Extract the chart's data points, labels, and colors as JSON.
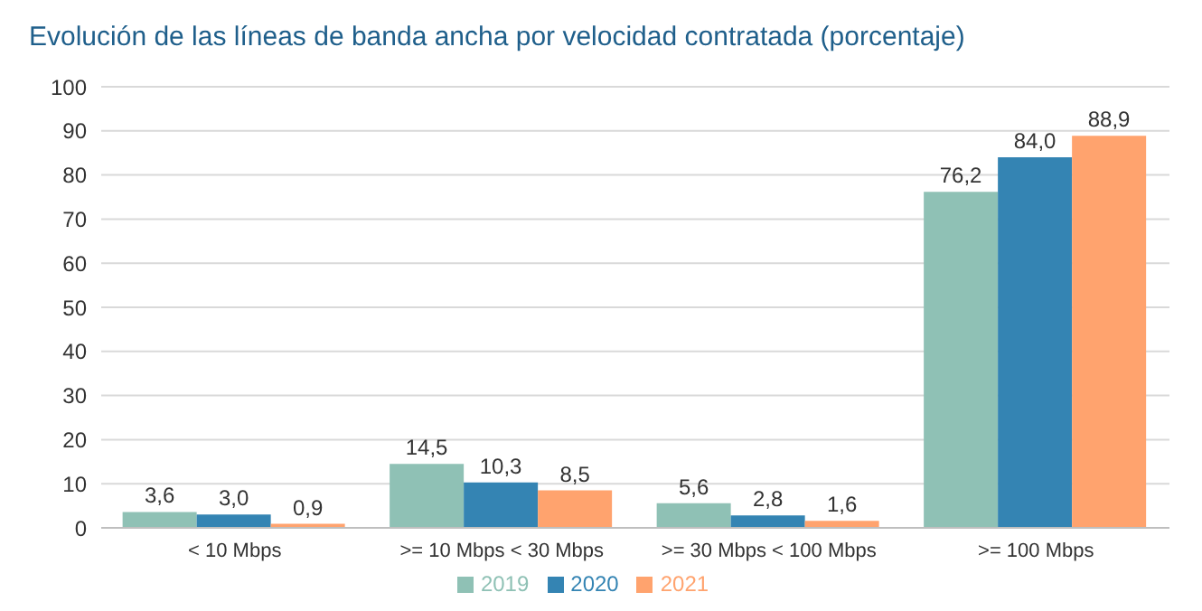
{
  "chart_data": {
    "type": "bar",
    "title": "Evolución de las líneas de banda ancha por velocidad contratada (porcentaje)",
    "categories": [
      "< 10 Mbps",
      ">= 10 Mbps < 30 Mbps",
      ">= 30 Mbps < 100 Mbps",
      ">= 100 Mbps"
    ],
    "series": [
      {
        "name": "2019",
        "color": "#8fc1b5",
        "values": [
          3.6,
          14.5,
          5.6,
          76.2
        ],
        "value_labels": [
          "3,6",
          "14,5",
          "5,6",
          "76,2"
        ]
      },
      {
        "name": "2020",
        "color": "#3484b3",
        "values": [
          3.0,
          10.3,
          2.8,
          84.0
        ],
        "value_labels": [
          "3,0",
          "10,3",
          "2,8",
          "84,0"
        ]
      },
      {
        "name": "2021",
        "color": "#ffa36e",
        "values": [
          0.9,
          8.5,
          1.6,
          88.9
        ],
        "value_labels": [
          "0,9",
          "8,5",
          "1,6",
          "88,9"
        ]
      }
    ],
    "ylim": [
      0,
      100
    ],
    "yticks": [
      0,
      10,
      20,
      30,
      40,
      50,
      60,
      70,
      80,
      90,
      100
    ],
    "grid": "y",
    "legend": "bottom"
  }
}
